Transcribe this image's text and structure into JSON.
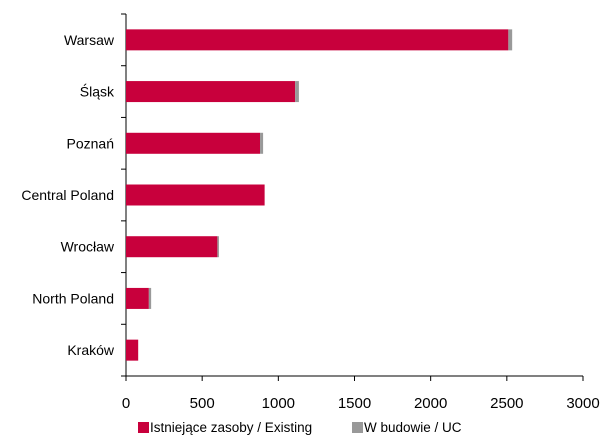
{
  "chart_data": {
    "type": "bar",
    "orientation": "horizontal",
    "stacked": true,
    "categories": [
      "Warsaw",
      "Śląsk",
      "Poznań",
      "Central Poland",
      "Wrocław",
      "North Poland",
      "Kraków"
    ],
    "series": [
      {
        "name": "Istniejące zasoby / Existing",
        "color": "#c8003c",
        "values": [
          2510,
          1110,
          880,
          910,
          600,
          150,
          80
        ]
      },
      {
        "name": "W budowie / UC",
        "color": "#999999",
        "values": [
          25,
          25,
          20,
          0,
          10,
          15,
          0
        ]
      }
    ],
    "xlim": [
      0,
      3000
    ],
    "xticks": [
      "0",
      "500",
      "1000",
      "1500",
      "2000",
      "2500",
      "3000"
    ],
    "grid": false,
    "legend_position": "bottom"
  }
}
